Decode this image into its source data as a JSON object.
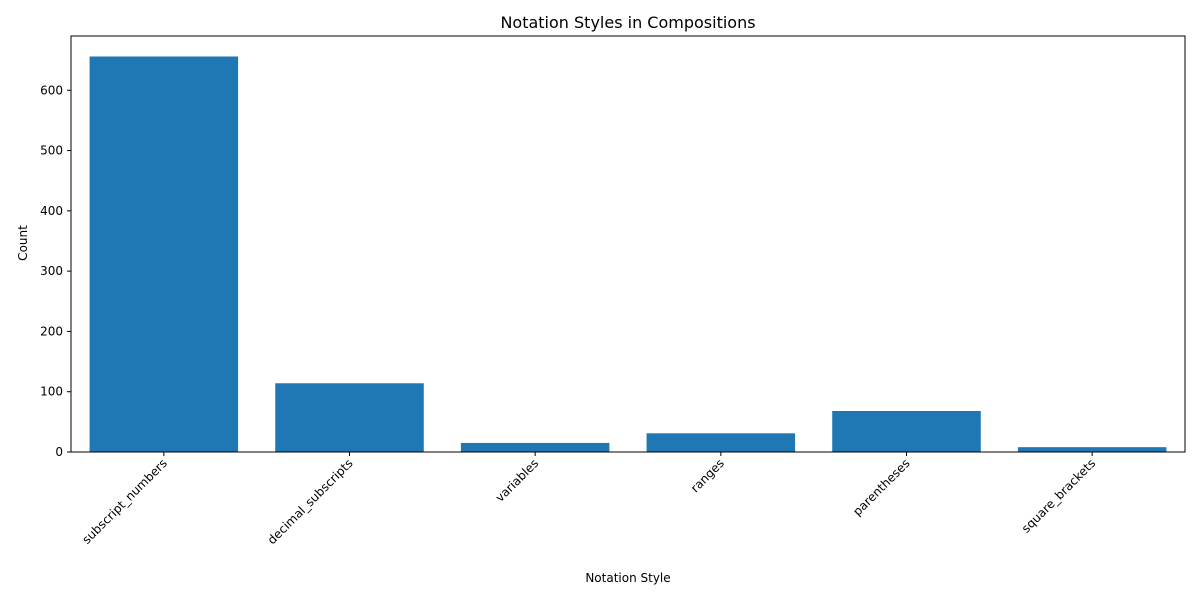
{
  "chart_data": {
    "type": "bar",
    "title": "Notation Styles in Compositions",
    "xlabel": "Notation Style",
    "ylabel": "Count",
    "categories": [
      "subscript_numbers",
      "decimal_subscripts",
      "variables",
      "ranges",
      "parentheses",
      "square_brackets"
    ],
    "values": [
      656,
      114,
      15,
      31,
      68,
      8
    ],
    "ylim": [
      0,
      690
    ],
    "yticks": [
      0,
      100,
      200,
      300,
      400,
      500,
      600
    ],
    "x_tick_rotation_deg": 45,
    "grid": false,
    "legend": "none",
    "bar_color": "#1f77b4"
  }
}
